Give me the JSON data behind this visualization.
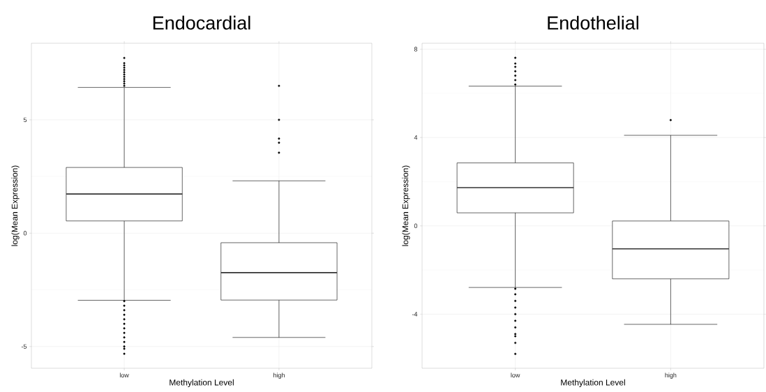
{
  "chart_data": [
    {
      "type": "box",
      "title": "Endocardial",
      "xlabel": "Methylation Level",
      "ylabel": "log(Mean Expression)",
      "categories": [
        "low",
        "high"
      ],
      "boxes": [
        {
          "low": -2.96,
          "q1": 0.54,
          "median": 1.73,
          "q3": 2.9,
          "high": 6.43,
          "outliers": [
            6.5,
            6.6,
            6.7,
            6.8,
            6.9,
            7.0,
            7.1,
            7.2,
            7.3,
            7.4,
            7.5,
            7.73,
            -3.0,
            -3.2,
            -3.4,
            -3.6,
            -3.8,
            -4.0,
            -4.2,
            -4.4,
            -4.6,
            -4.8,
            -5.0,
            -5.1,
            -5.32
          ]
        },
        {
          "low": -4.6,
          "q1": -2.95,
          "median": -1.74,
          "q3": -0.42,
          "high": 2.31,
          "outliers": [
            6.5,
            5.0,
            4.17,
            3.99,
            3.55
          ]
        }
      ],
      "ylim": [
        -5.96,
        8.38
      ],
      "yticks": [
        -5,
        0,
        5
      ],
      "grid": true
    },
    {
      "type": "box",
      "title": "Endothelial",
      "xlabel": "Methylation Level",
      "ylabel": "log(Mean Expression)",
      "categories": [
        "low",
        "high"
      ],
      "boxes": [
        {
          "low": -2.79,
          "q1": 0.59,
          "median": 1.73,
          "q3": 2.85,
          "high": 6.33,
          "outliers": [
            6.4,
            6.6,
            6.8,
            7.0,
            7.2,
            7.35,
            7.61,
            -2.85,
            -3.1,
            -3.4,
            -3.7,
            -4.0,
            -4.3,
            -4.6,
            -4.9,
            -5.0,
            -5.3,
            -5.8
          ]
        },
        {
          "low": -4.46,
          "q1": -2.4,
          "median": -1.04,
          "q3": 0.22,
          "high": 4.1,
          "outliers": [
            4.79
          ]
        }
      ],
      "ylim": [
        -6.45,
        8.27
      ],
      "yticks": [
        -4,
        0,
        4,
        8
      ],
      "grid": true
    }
  ]
}
